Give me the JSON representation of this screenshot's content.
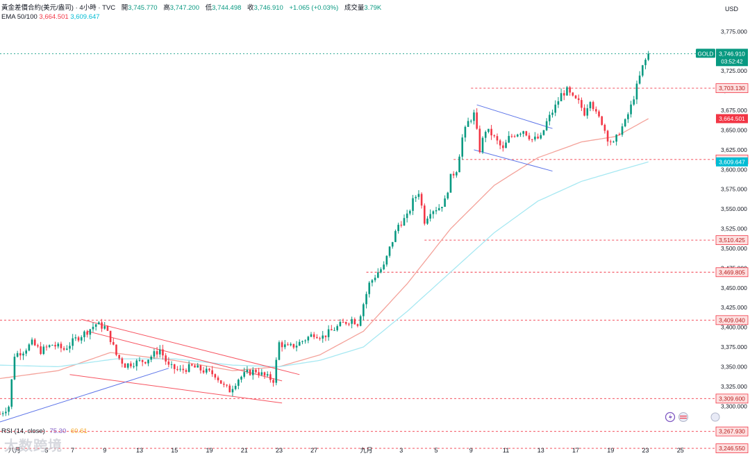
{
  "header": {
    "symbol": "黃金差價合約(美元/盎司) · 4小時 · TVC",
    "open_label": "開",
    "open": "3,745.770",
    "high_label": "高",
    "high": "3,747.200",
    "low_label": "低",
    "low": "3,744.498",
    "close_label": "收",
    "close": "3,746.910",
    "change": "+1.065 (+0.03%)",
    "volume_label": "成交量",
    "volume": "3.79K"
  },
  "ema": {
    "label": "EMA 50/100",
    "ema50": "3,664.501",
    "ema100": "3,609.647"
  },
  "rsi": {
    "label": "RSI (14, close)",
    "value1": "75.30",
    "value2": "60.61"
  },
  "watermark": "大数跨境",
  "colors": {
    "up": "#089981",
    "down": "#f23645",
    "ema50": "#f4a29a",
    "ema100": "#a6e8f2",
    "level": "#f23645",
    "channel_red": "#f7525f",
    "channel_blue": "#5b73e8"
  },
  "chart_data": {
    "type": "candlestick",
    "currency": "USD",
    "ylim": [
      3280,
      3785
    ],
    "y_ticks": [
      3300,
      3325,
      3350,
      3375,
      3400,
      3425,
      3450,
      3475,
      3500,
      3525,
      3550,
      3575,
      3600,
      3625,
      3650,
      3675,
      3700,
      3725,
      3750,
      3775
    ],
    "y_tick_labels": [
      "3,300.000",
      "3,325.000",
      "3,350.000",
      "3,375.000",
      "3,400.000",
      "3,425.000",
      "3,450.000",
      "3,475.000",
      "3,500.000",
      "3,525.000",
      "3,550.000",
      "3,575.000",
      "3,600.000",
      "3,625.000",
      "3,650.000",
      "3,675.000",
      "3,700.000",
      "3,725.000",
      "3,750.000",
      "3,775.000"
    ],
    "x_ticks": [
      {
        "x": 5,
        "label": "八月"
      },
      {
        "x": 16,
        "label": "5"
      },
      {
        "x": 25,
        "label": "7"
      },
      {
        "x": 36,
        "label": "9"
      },
      {
        "x": 48,
        "label": "13"
      },
      {
        "x": 60,
        "label": "15"
      },
      {
        "x": 72,
        "label": "19"
      },
      {
        "x": 84,
        "label": "21"
      },
      {
        "x": 96,
        "label": "23"
      },
      {
        "x": 108,
        "label": "27"
      },
      {
        "x": 126,
        "label": "九月"
      },
      {
        "x": 138,
        "label": "3"
      },
      {
        "x": 150,
        "label": "5"
      },
      {
        "x": 162,
        "label": "9"
      },
      {
        "x": 174,
        "label": "11"
      },
      {
        "x": 186,
        "label": "13"
      },
      {
        "x": 198,
        "label": "17"
      },
      {
        "x": 210,
        "label": "19"
      },
      {
        "x": 222,
        "label": "23"
      },
      {
        "x": 234,
        "label": "25"
      }
    ],
    "x_range": [
      0,
      246
    ],
    "anchors": [
      [
        0,
        3290
      ],
      [
        3,
        3300
      ],
      [
        5,
        3365
      ],
      [
        8,
        3370
      ],
      [
        11,
        3380
      ],
      [
        14,
        3370
      ],
      [
        18,
        3378
      ],
      [
        22,
        3372
      ],
      [
        26,
        3385
      ],
      [
        30,
        3395
      ],
      [
        33,
        3404
      ],
      [
        36,
        3400
      ],
      [
        38,
        3385
      ],
      [
        40,
        3365
      ],
      [
        43,
        3352
      ],
      [
        46,
        3355
      ],
      [
        50,
        3358
      ],
      [
        53,
        3366
      ],
      [
        55,
        3372
      ],
      [
        58,
        3350
      ],
      [
        62,
        3345
      ],
      [
        66,
        3350
      ],
      [
        70,
        3345
      ],
      [
        74,
        3340
      ],
      [
        77,
        3325
      ],
      [
        79,
        3320
      ],
      [
        82,
        3335
      ],
      [
        85,
        3342
      ],
      [
        88,
        3345
      ],
      [
        91,
        3338
      ],
      [
        94,
        3333
      ],
      [
        96,
        3380
      ],
      [
        99,
        3374
      ],
      [
        102,
        3378
      ],
      [
        105,
        3385
      ],
      [
        108,
        3392
      ],
      [
        111,
        3388
      ],
      [
        115,
        3398
      ],
      [
        118,
        3405
      ],
      [
        121,
        3410
      ],
      [
        123,
        3405
      ],
      [
        125,
        3430
      ],
      [
        127,
        3455
      ],
      [
        130,
        3470
      ],
      [
        132,
        3477
      ],
      [
        134,
        3500
      ],
      [
        137,
        3530
      ],
      [
        140,
        3540
      ],
      [
        142,
        3560
      ],
      [
        144,
        3572
      ],
      [
        146,
        3535
      ],
      [
        148,
        3548
      ],
      [
        151,
        3552
      ],
      [
        153,
        3560
      ],
      [
        155,
        3590
      ],
      [
        157,
        3600
      ],
      [
        159,
        3640
      ],
      [
        161,
        3660
      ],
      [
        163,
        3670
      ],
      [
        165,
        3625
      ],
      [
        167,
        3650
      ],
      [
        169,
        3645
      ],
      [
        171,
        3635
      ],
      [
        173,
        3625
      ],
      [
        175,
        3640
      ],
      [
        177,
        3645
      ],
      [
        180,
        3650
      ],
      [
        183,
        3638
      ],
      [
        186,
        3640
      ],
      [
        188,
        3660
      ],
      [
        191,
        3680
      ],
      [
        193,
        3695
      ],
      [
        195,
        3700
      ],
      [
        197,
        3690
      ],
      [
        199,
        3685
      ],
      [
        201,
        3672
      ],
      [
        203,
        3690
      ],
      [
        205,
        3670
      ],
      [
        207,
        3660
      ],
      [
        209,
        3640
      ],
      [
        211,
        3632
      ],
      [
        213,
        3648
      ],
      [
        215,
        3660
      ],
      [
        217,
        3680
      ],
      [
        219,
        3705
      ],
      [
        221,
        3730
      ],
      [
        223,
        3746.91
      ]
    ],
    "ema50_points": [
      [
        0,
        3335
      ],
      [
        20,
        3345
      ],
      [
        38,
        3368
      ],
      [
        60,
        3358
      ],
      [
        80,
        3345
      ],
      [
        96,
        3350
      ],
      [
        110,
        3365
      ],
      [
        125,
        3395
      ],
      [
        140,
        3455
      ],
      [
        155,
        3525
      ],
      [
        170,
        3580
      ],
      [
        185,
        3615
      ],
      [
        200,
        3635
      ],
      [
        212,
        3642
      ],
      [
        223,
        3664.501
      ]
    ],
    "ema100_points": [
      [
        0,
        3352
      ],
      [
        20,
        3350
      ],
      [
        40,
        3360
      ],
      [
        60,
        3360
      ],
      [
        80,
        3352
      ],
      [
        96,
        3350
      ],
      [
        110,
        3358
      ],
      [
        125,
        3375
      ],
      [
        140,
        3420
      ],
      [
        155,
        3470
      ],
      [
        170,
        3520
      ],
      [
        185,
        3560
      ],
      [
        200,
        3585
      ],
      [
        212,
        3598
      ],
      [
        223,
        3609.647
      ]
    ],
    "levels": [
      {
        "value": 3703.13,
        "label": "3,703.130",
        "from_x": 162
      },
      {
        "value": 3612.72,
        "label": "3,612.720",
        "from_x": 156
      },
      {
        "value": 3510.425,
        "label": "3,510.425",
        "from_x": 146
      },
      {
        "value": 3469.805,
        "label": "3,469.805",
        "from_x": 126
      },
      {
        "value": 3409.04,
        "label": "3,409.040",
        "from_x": 0
      },
      {
        "value": 3309.6,
        "label": "3,309.600",
        "from_x": 0
      },
      {
        "value": 3267.93,
        "label": "3,267.930",
        "from_x": 0
      },
      {
        "value": 3246.55,
        "label": "3,246.550",
        "from_x": 0
      }
    ],
    "price_tags": [
      {
        "value": 3664.501,
        "label": "3,664.501",
        "color": "#f23645"
      },
      {
        "value": 3609.647,
        "label": "3,609.647",
        "color": "#00bcd4"
      }
    ],
    "last_price": {
      "value": 3746.91,
      "label": "3,746.910",
      "symbol": "GOLD",
      "countdown": "03:52:42"
    },
    "trendlines": [
      {
        "color": "#f7525f",
        "points": [
          [
            28,
            3410
          ],
          [
            103,
            3340
          ]
        ]
      },
      {
        "color": "#f7525f",
        "points": [
          [
            24,
            3340
          ],
          [
            97,
            3304
          ]
        ]
      },
      {
        "color": "#f7525f",
        "points": [
          [
            30,
            3395
          ],
          [
            97,
            3332
          ]
        ]
      },
      {
        "color": "#5b73e8",
        "points": [
          [
            0,
            3280
          ],
          [
            58,
            3348
          ]
        ]
      },
      {
        "color": "#5b73e8",
        "points": [
          [
            164,
            3682
          ],
          [
            190,
            3652
          ]
        ]
      },
      {
        "color": "#5b73e8",
        "points": [
          [
            163,
            3625
          ],
          [
            190,
            3598
          ]
        ]
      }
    ]
  }
}
